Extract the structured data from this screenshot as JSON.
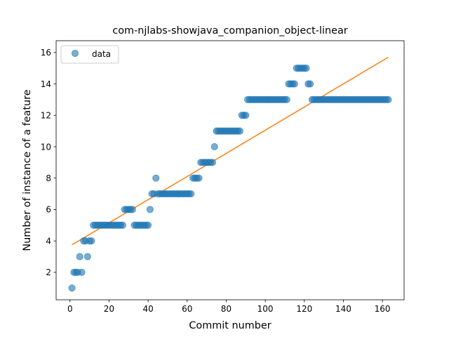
{
  "chart_data": {
    "type": "scatter",
    "title": "com-njlabs-showjava_companion_object-linear",
    "xlabel": "Commit number",
    "ylabel": "Number of instance of a feature",
    "xlim": [
      -7.1,
      171.1
    ],
    "ylim": [
      0.25,
      16.75
    ],
    "xticks": [
      0,
      20,
      40,
      60,
      80,
      100,
      120,
      140,
      160
    ],
    "yticks": [
      2,
      4,
      6,
      8,
      10,
      12,
      14,
      16
    ],
    "xtick_labels": [
      "0",
      "20",
      "40",
      "60",
      "80",
      "100",
      "120",
      "140",
      "160"
    ],
    "ytick_labels": [
      "2",
      "4",
      "6",
      "8",
      "10",
      "12",
      "14",
      "16"
    ],
    "grid": false,
    "legend": {
      "position": "top-left",
      "entries": [
        "data"
      ]
    },
    "colors": {
      "data": "#1f77b4",
      "fit": "#ff7f0e"
    },
    "series": [
      {
        "name": "data",
        "kind": "points",
        "x": [
          1,
          2,
          3,
          4,
          5,
          6,
          7,
          8,
          9,
          10,
          11,
          12,
          13,
          14,
          15,
          16,
          17,
          18,
          19,
          20,
          21,
          22,
          23,
          24,
          25,
          26,
          27,
          28,
          29,
          30,
          31,
          32,
          33,
          34,
          35,
          36,
          37,
          38,
          39,
          40,
          41,
          42,
          43,
          44,
          45,
          46,
          47,
          48,
          49,
          50,
          51,
          52,
          53,
          54,
          55,
          56,
          57,
          58,
          59,
          60,
          61,
          62,
          63,
          64,
          65,
          66,
          67,
          68,
          69,
          70,
          71,
          72,
          73,
          74,
          75,
          76,
          77,
          78,
          79,
          80,
          81,
          82,
          83,
          84,
          85,
          86,
          87,
          88,
          89,
          90,
          91,
          92,
          93,
          94,
          95,
          96,
          97,
          98,
          99,
          100,
          101,
          102,
          103,
          104,
          105,
          106,
          107,
          108,
          109,
          110,
          111,
          112,
          113,
          114,
          115,
          116,
          117,
          118,
          119,
          120,
          121,
          122,
          123,
          124,
          125,
          126,
          127,
          128,
          129,
          130,
          131,
          132,
          133,
          134,
          135,
          136,
          137,
          138,
          139,
          140,
          141,
          142,
          143,
          144,
          145,
          146,
          147,
          148,
          149,
          150,
          151,
          152,
          153,
          154,
          155,
          156,
          157,
          158,
          159,
          160,
          161,
          162,
          163
        ],
        "y": [
          1,
          2,
          2,
          2,
          3,
          2,
          4,
          4,
          3,
          4,
          4,
          5,
          5,
          5,
          5,
          5,
          5,
          5,
          5,
          5,
          5,
          5,
          5,
          5,
          5,
          5,
          5,
          6,
          6,
          6,
          6,
          6,
          5,
          5,
          5,
          5,
          5,
          5,
          5,
          5,
          6,
          7,
          7,
          8,
          7,
          7,
          7,
          7,
          7,
          7,
          7,
          7,
          7,
          7,
          7,
          7,
          7,
          7,
          7,
          7,
          7,
          7,
          8,
          8,
          8,
          8,
          9,
          9,
          9,
          9,
          9,
          9,
          9,
          10,
          11,
          11,
          11,
          11,
          11,
          11,
          11,
          11,
          11,
          11,
          11,
          11,
          11,
          12,
          12,
          12,
          13,
          13,
          13,
          13,
          13,
          13,
          13,
          13,
          13,
          13,
          13,
          13,
          13,
          13,
          13,
          13,
          13,
          13,
          13,
          13,
          13,
          14,
          14,
          14,
          14,
          15,
          15,
          15,
          15,
          15,
          15,
          14,
          14,
          13,
          13,
          13,
          13,
          13,
          13,
          13,
          13,
          13,
          13,
          13,
          13,
          13,
          13,
          13,
          13,
          13,
          13,
          13,
          13,
          13,
          13,
          13,
          13,
          13,
          13,
          13,
          13,
          13,
          13,
          13,
          13,
          13,
          13,
          13,
          13,
          13,
          13,
          13,
          13
        ]
      },
      {
        "name": "",
        "kind": "line",
        "x": [
          1,
          163
        ],
        "y": [
          3.75,
          15.7
        ]
      }
    ]
  }
}
